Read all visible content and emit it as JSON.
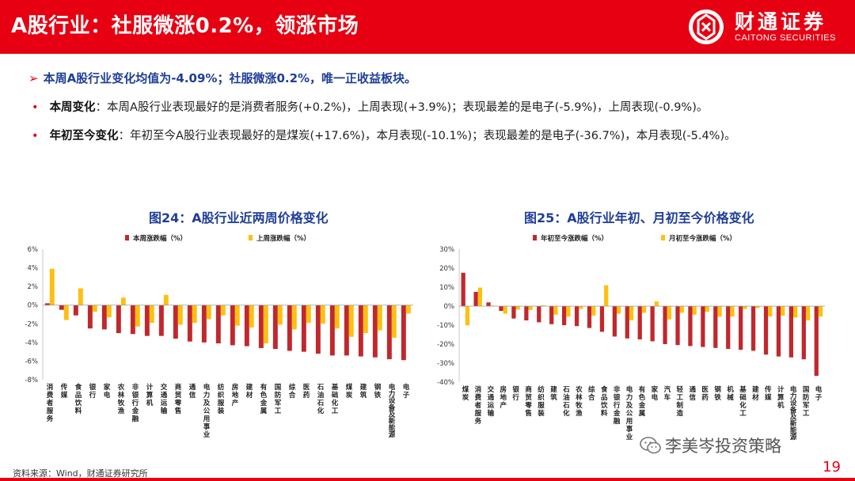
{
  "header": {
    "title": "A股行业：社服微涨0.2%，领涨市场",
    "logo_cn": "财通证券",
    "logo_en": "CAITONG SECURITIES"
  },
  "summary": "本周A股行业变化均值为-4.09%；社服微涨0.2%，唯一正收益板块。",
  "bullets": [
    {
      "label": "本周变化",
      "text": "：本周A股行业表现最好的是消费者服务(+0.2%)，上周表现(+3.9%)；表现最差的是电子(-5.9%)，上周表现(-0.9%)。"
    },
    {
      "label": "年初至今变化",
      "text": "：年初至今A股行业表现最好的是煤炭(+17.6%)，本月表现(-10.1%)；表现最差的是电子(-36.7%)，本月表现(-5.4%)。"
    }
  ],
  "colors": {
    "red": "#c0282d",
    "yellow": "#fdc010",
    "brand": "#e60012",
    "title_blue": "#1f3e97"
  },
  "chart_data": [
    {
      "type": "bar",
      "title": "图24：A股行业近两周价格变化",
      "ylim": [
        -8,
        6
      ],
      "yticks": [
        -8,
        -6,
        -4,
        -2,
        0,
        2,
        4,
        6
      ],
      "tick_suffix": "%",
      "categories": [
        "消费者服务",
        "传媒",
        "食品饮料",
        "银行",
        "家电",
        "农林牧渔",
        "非银行金融",
        "计算机",
        "交通运输",
        "商贸零售",
        "通信",
        "电力及公用事业",
        "纺织服装",
        "房地产",
        "建材",
        "有色金属",
        "国防军工",
        "综合",
        "医药",
        "石油石化",
        "基础化工",
        "煤炭",
        "建筑",
        "钢铁",
        "电力设备及新能源",
        "电子"
      ],
      "series": [
        {
          "name": "本周涨跌幅（%）",
          "color": "#c0282d",
          "values": [
            0.2,
            -0.5,
            -1.1,
            -2.5,
            -2.6,
            -3.0,
            -3.1,
            -3.3,
            -3.3,
            -3.6,
            -3.9,
            -4.0,
            -4.1,
            -4.3,
            -4.4,
            -4.6,
            -4.7,
            -4.9,
            -5.0,
            -5.2,
            -5.4,
            -5.4,
            -5.5,
            -5.6,
            -5.8,
            -5.9
          ]
        },
        {
          "name": "上周涨跌幅（%）",
          "color": "#fdc010",
          "values": [
            3.9,
            -1.6,
            1.8,
            -0.7,
            -1.3,
            0.8,
            -2.3,
            -1.9,
            1.1,
            -2.1,
            -1.9,
            -1.5,
            -1.1,
            -2.2,
            -2.4,
            -4.1,
            -2.1,
            -2.6,
            -1.9,
            -2.0,
            -2.5,
            -3.4,
            -3.0,
            -2.7,
            -3.5,
            -0.9
          ]
        }
      ]
    },
    {
      "type": "bar",
      "title": "图25：A股行业年初、月初至今价格变化",
      "ylim": [
        -40,
        30
      ],
      "yticks": [
        -40,
        -30,
        -20,
        -10,
        0,
        10,
        20,
        30
      ],
      "tick_suffix": "%",
      "categories": [
        "煤炭",
        "消费者服务",
        "交通运输",
        "房地产",
        "银行",
        "商贸零售",
        "纺织服装",
        "建筑",
        "石油石化",
        "农林牧渔",
        "综合",
        "食品饮料",
        "非银行金融",
        "电力及公用事业",
        "有色金属",
        "家电",
        "汽车",
        "轻工制造",
        "通信",
        "医药",
        "钢铁",
        "机械",
        "基础化工",
        "建材",
        "传媒",
        "计算机",
        "电力设备及新能源",
        "国防军工",
        "电子"
      ],
      "series": [
        {
          "name": "年初至今涨跌幅（%）",
          "color": "#c0282d",
          "values": [
            17.6,
            7.5,
            2.0,
            -2.5,
            -6.5,
            -7.5,
            -8.5,
            -9.5,
            -10.0,
            -10.5,
            -11.5,
            -13.5,
            -16.0,
            -17.0,
            -17.5,
            -18.5,
            -20.0,
            -20.5,
            -21.0,
            -21.5,
            -22.0,
            -22.5,
            -23.0,
            -23.5,
            -25.5,
            -26.5,
            -27.0,
            -28.0,
            -36.7
          ]
        },
        {
          "name": "月初至今涨跌幅（%）",
          "color": "#fdc010",
          "values": [
            -10.1,
            9.8,
            0.3,
            -4.0,
            -1.8,
            -2.0,
            0.5,
            -4.5,
            -5.5,
            -1.5,
            -5.0,
            11.0,
            -4.0,
            -7.5,
            -3.5,
            2.5,
            -7.0,
            -3.5,
            -4.5,
            -3.0,
            -5.5,
            -5.5,
            -1.5,
            -1.0,
            -5.5,
            -5.0,
            -6.0,
            -7.5,
            -5.4
          ]
        }
      ]
    }
  ],
  "source_note": "资料来源：Wind，财通证券研究所",
  "page_number": "19",
  "watermark": "李美岑投资策略"
}
